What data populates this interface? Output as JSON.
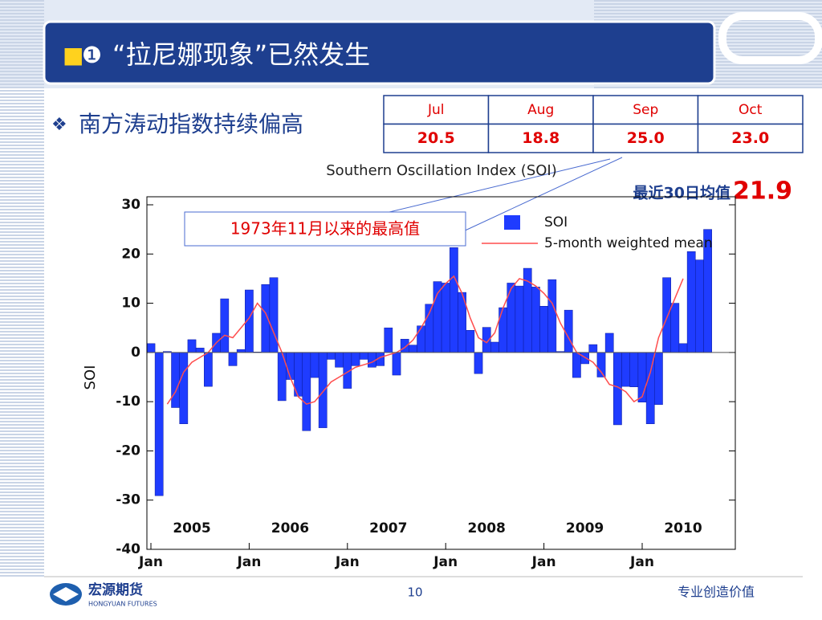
{
  "header": {
    "marker": "■",
    "number": "❶",
    "title": "“拉尼娜现象”已然发生"
  },
  "bullet": {
    "marker": "❖",
    "text": "南方涛动指数持续偏高"
  },
  "table": {
    "columns": [
      "Jul",
      "Aug",
      "Sep",
      "Oct"
    ],
    "rows": [
      [
        "20.5",
        "18.8",
        "25.0",
        "23.0"
      ]
    ]
  },
  "annotation": {
    "label": "最近30日均值",
    "value": "21.9"
  },
  "callout": "1973年11月以来的最高值",
  "chart_data": {
    "type": "bar",
    "title": "Southern Oscillation Index (SOI)",
    "ylabel": "SOI",
    "x": [
      "2005-01",
      "2005-02",
      "2005-03",
      "2005-04",
      "2005-05",
      "2005-06",
      "2005-07",
      "2005-08",
      "2005-09",
      "2005-10",
      "2005-11",
      "2005-12",
      "2006-01",
      "2006-02",
      "2006-03",
      "2006-04",
      "2006-05",
      "2006-06",
      "2006-07",
      "2006-08",
      "2006-09",
      "2006-10",
      "2006-11",
      "2006-12",
      "2007-01",
      "2007-02",
      "2007-03",
      "2007-04",
      "2007-05",
      "2007-06",
      "2007-07",
      "2007-08",
      "2007-09",
      "2007-10",
      "2007-11",
      "2007-12",
      "2008-01",
      "2008-02",
      "2008-03",
      "2008-04",
      "2008-05",
      "2008-06",
      "2008-07",
      "2008-08",
      "2008-09",
      "2008-10",
      "2008-11",
      "2008-12",
      "2009-01",
      "2009-02",
      "2009-03",
      "2009-04",
      "2009-05",
      "2009-06",
      "2009-07",
      "2009-08",
      "2009-09",
      "2009-10",
      "2009-11",
      "2009-12",
      "2010-01",
      "2010-02",
      "2010-03",
      "2010-04",
      "2010-05",
      "2010-06",
      "2010-07",
      "2010-08",
      "2010-09"
    ],
    "series": [
      {
        "name": "SOI",
        "type": "bar",
        "color": "#1f3cff",
        "values": [
          1.8,
          -29.1,
          0.2,
          -11.2,
          -14.5,
          2.6,
          0.9,
          -6.9,
          3.9,
          10.9,
          -2.7,
          0.6,
          12.7,
          0.1,
          13.8,
          15.2,
          -9.8,
          -5.5,
          -8.9,
          -15.9,
          -5.1,
          -15.3,
          -1.4,
          -3.0,
          -7.3,
          -2.7,
          -1.4,
          -3.0,
          -2.7,
          5.0,
          -4.6,
          2.7,
          1.5,
          5.4,
          9.8,
          14.4,
          14.1,
          21.3,
          12.2,
          4.5,
          -4.3,
          5.1,
          2.1,
          9.1,
          14.1,
          13.5,
          17.1,
          13.3,
          9.4,
          14.8,
          0.2,
          8.6,
          -5.1,
          -2.3,
          1.6,
          -5.0,
          3.9,
          -14.7,
          -6.9,
          -7.0,
          -10.1,
          -14.5,
          -10.6,
          15.2,
          10.0,
          1.8,
          20.5,
          18.8,
          25.0
        ]
      },
      {
        "name": "5-month weighted mean",
        "type": "line",
        "color": "#ff4d4d",
        "values": [
          null,
          null,
          -10.5,
          -8,
          -4,
          -2,
          -1,
          0,
          2,
          3.5,
          3,
          5,
          7,
          10,
          8,
          4,
          0,
          -5,
          -9,
          -10.5,
          -10,
          -8,
          -6,
          -5,
          -4,
          -3,
          -2.5,
          -2,
          -1,
          -0.5,
          0,
          1,
          2.5,
          5,
          8,
          12,
          14,
          15.5,
          12,
          7,
          3,
          2,
          4,
          9,
          13,
          15,
          14.5,
          13.5,
          12,
          10,
          6,
          3,
          0,
          -1,
          -2,
          -4,
          -6.5,
          -7,
          -8,
          -10,
          -9,
          -4,
          3,
          7,
          11,
          15,
          null,
          null,
          null
        ]
      }
    ],
    "xticks": [
      {
        "value": "2005-01",
        "label": "Jan"
      },
      {
        "value": "2006-01",
        "label": "Jan"
      },
      {
        "value": "2007-01",
        "label": "Jan"
      },
      {
        "value": "2008-01",
        "label": "Jan"
      },
      {
        "value": "2009-01",
        "label": "Jan"
      },
      {
        "value": "2010-01",
        "label": "Jan"
      }
    ],
    "year_ticks": [
      {
        "value": "2005-06",
        "label": "2005"
      },
      {
        "value": "2006-06",
        "label": "2006"
      },
      {
        "value": "2007-06",
        "label": "2007"
      },
      {
        "value": "2008-06",
        "label": "2008"
      },
      {
        "value": "2009-06",
        "label": "2009"
      },
      {
        "value": "2010-06",
        "label": "2010"
      }
    ],
    "ylim": [
      -40,
      30
    ],
    "yticks": [
      30,
      20,
      10,
      0,
      -10,
      -20,
      -30,
      -40
    ],
    "legend": "upper right"
  },
  "footer": {
    "company": "宏源期货",
    "company_en": "HONGYUAN FUTURES",
    "page": "10",
    "slogan": "专业创造价值"
  }
}
